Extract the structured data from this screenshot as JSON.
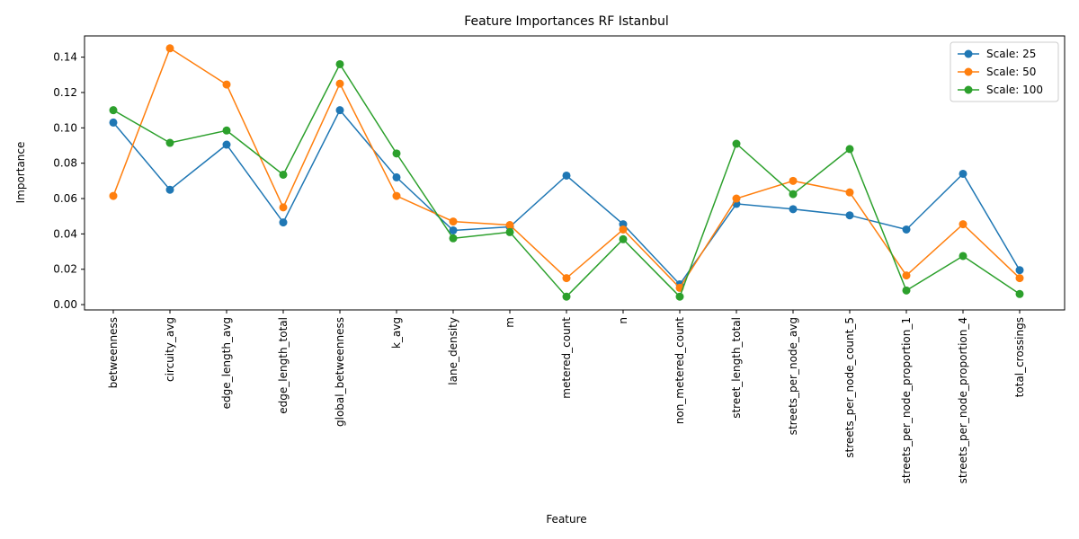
{
  "chart_data": {
    "type": "line",
    "title": "Feature Importances RF Istanbul",
    "xlabel": "Feature",
    "ylabel": "Importance",
    "ylim": [
      -0.003,
      0.152
    ],
    "yticks": [
      "0.00",
      "0.02",
      "0.04",
      "0.06",
      "0.08",
      "0.10",
      "0.12",
      "0.14"
    ],
    "grid": false,
    "legend_position": "top-right",
    "categories": [
      "betweenness",
      "circuity_avg",
      "edge_length_avg",
      "edge_length_total",
      "global_betweenness",
      "k_avg",
      "lane_density",
      "m",
      "metered_count",
      "n",
      "non_metered_count",
      "street_length_total",
      "streets_per_node_avg",
      "streets_per_node_count_5",
      "streets_per_node_proportion_1",
      "streets_per_node_proportion_4",
      "total_crossings"
    ],
    "series": [
      {
        "name": "Scale: 25",
        "color": "#1f77b4",
        "values": [
          0.103,
          0.065,
          0.0905,
          0.0465,
          0.11,
          0.072,
          0.042,
          0.044,
          0.073,
          0.0455,
          0.0115,
          0.057,
          0.054,
          0.0505,
          0.0425,
          0.074,
          0.0195
        ]
      },
      {
        "name": "Scale: 50",
        "color": "#ff7f0e",
        "values": [
          0.0615,
          0.145,
          0.1245,
          0.055,
          0.125,
          0.0615,
          0.047,
          0.045,
          0.015,
          0.0425,
          0.0095,
          0.06,
          0.07,
          0.0635,
          0.0165,
          0.0455,
          0.015
        ]
      },
      {
        "name": "Scale: 100",
        "color": "#2ca02c",
        "values": [
          0.11,
          0.0915,
          0.0985,
          0.0735,
          0.136,
          0.0855,
          0.0375,
          0.041,
          0.0045,
          0.037,
          0.0045,
          0.091,
          0.0625,
          0.088,
          0.008,
          0.0275,
          0.006
        ]
      }
    ]
  }
}
